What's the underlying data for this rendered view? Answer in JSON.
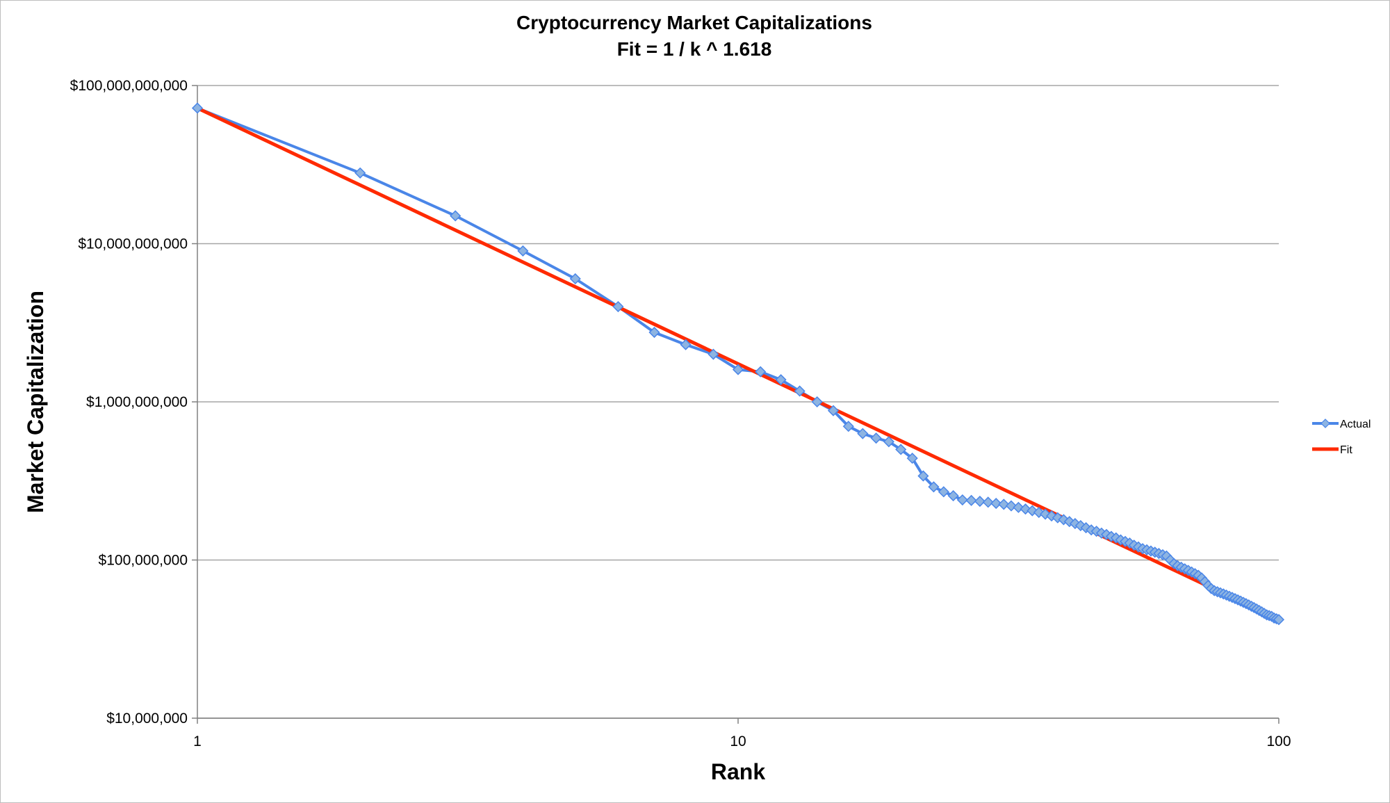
{
  "chart_data": {
    "type": "line",
    "title": "Cryptocurrency Market Capitalizations",
    "subtitle": "Fit = 1 / k ^ 1.618",
    "xlabel": "Rank",
    "ylabel": "Market Capitalization",
    "x_scale": "log",
    "y_scale": "log",
    "xlim": [
      1,
      100
    ],
    "ylim": [
      10000000,
      100000000000
    ],
    "x_ticks": [
      1,
      10,
      100
    ],
    "x_tick_labels": [
      "1",
      "10",
      "100"
    ],
    "y_ticks": [
      10000000,
      100000000,
      1000000000,
      10000000000,
      100000000000
    ],
    "y_tick_labels": [
      "$10,000,000",
      "$100,000,000",
      "$1,000,000,000",
      "$10,000,000,000",
      "$100,000,000,000"
    ],
    "grid": {
      "horizontal": true,
      "vertical": false
    },
    "legend_position": "right",
    "series": [
      {
        "name": "Actual",
        "color": "#4a86e8",
        "marker": "diamond",
        "marker_color": "#8db4e2",
        "x": [
          1,
          2,
          3,
          4,
          5,
          6,
          7,
          8,
          9,
          10,
          11,
          12,
          13,
          14,
          15,
          16,
          17,
          18,
          19,
          20,
          21,
          22,
          23,
          24,
          25,
          26,
          27,
          28,
          29,
          30,
          31,
          32,
          33,
          34,
          35,
          36,
          37,
          38,
          39,
          40,
          41,
          42,
          43,
          44,
          45,
          46,
          47,
          48,
          49,
          50,
          51,
          52,
          53,
          54,
          55,
          56,
          57,
          58,
          59,
          60,
          61,
          62,
          63,
          64,
          65,
          66,
          67,
          68,
          69,
          70,
          71,
          72,
          73,
          74,
          75,
          76,
          77,
          78,
          79,
          80,
          81,
          82,
          83,
          84,
          85,
          86,
          87,
          88,
          89,
          90,
          91,
          92,
          93,
          94,
          95,
          96,
          97,
          98,
          99,
          100
        ],
        "values": [
          72000000000,
          28000000000,
          15000000000,
          9000000000,
          6000000000,
          4000000000,
          2750000000,
          2300000000,
          2000000000,
          1600000000,
          1550000000,
          1380000000,
          1170000000,
          1000000000,
          880000000,
          700000000,
          630000000,
          590000000,
          560000000,
          500000000,
          440000000,
          340000000,
          290000000,
          270000000,
          255000000,
          240000000,
          238000000,
          235000000,
          232000000,
          228000000,
          225000000,
          220000000,
          215000000,
          210000000,
          205000000,
          200000000,
          195000000,
          190000000,
          185000000,
          180000000,
          175000000,
          170000000,
          165000000,
          160000000,
          155000000,
          152000000,
          148000000,
          145000000,
          141000000,
          138000000,
          134000000,
          131000000,
          128000000,
          124000000,
          121000000,
          118000000,
          116000000,
          114000000,
          112000000,
          110000000,
          108000000,
          106000000,
          100000000,
          95000000,
          92000000,
          90000000,
          88000000,
          86000000,
          84000000,
          82000000,
          80000000,
          77000000,
          73000000,
          69000000,
          66000000,
          64000000,
          63000000,
          62000000,
          61000000,
          60000000,
          59000000,
          58000000,
          57000000,
          56000000,
          55000000,
          54000000,
          53000000,
          52000000,
          51000000,
          50000000,
          49000000,
          48000000,
          47000000,
          46000000,
          45000000,
          44500000,
          44000000,
          43000000,
          42500000,
          42000000
        ]
      },
      {
        "name": "Fit",
        "color": "#ff2a00",
        "x": [
          1,
          100
        ],
        "values": [
          72000000000,
          42000000
        ]
      }
    ]
  }
}
